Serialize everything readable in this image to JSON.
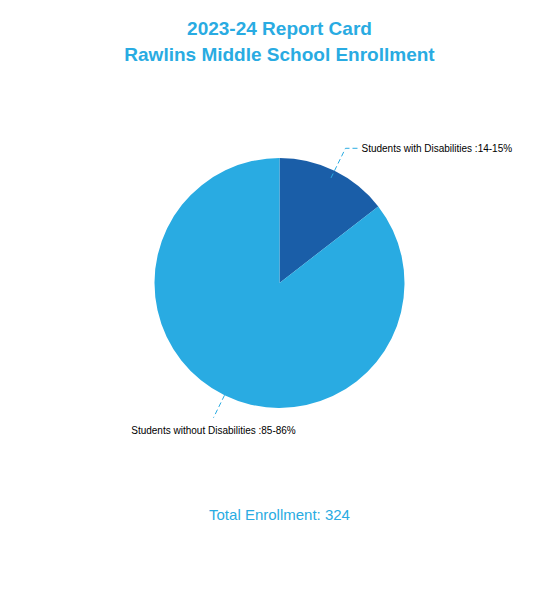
{
  "chart_data": {
    "type": "pie",
    "title": "2023-24 Report Card",
    "subtitle": "Rawlins Middle School Enrollment",
    "categories": [
      "Students with Disabilities :14-15%",
      "Students without Disabilities :85-86%"
    ],
    "values": [
      14.5,
      85.5
    ],
    "colors": [
      "#1A5EA8",
      "#29ABE2"
    ],
    "annotations": [
      "Total Enrollment: 324"
    ]
  }
}
